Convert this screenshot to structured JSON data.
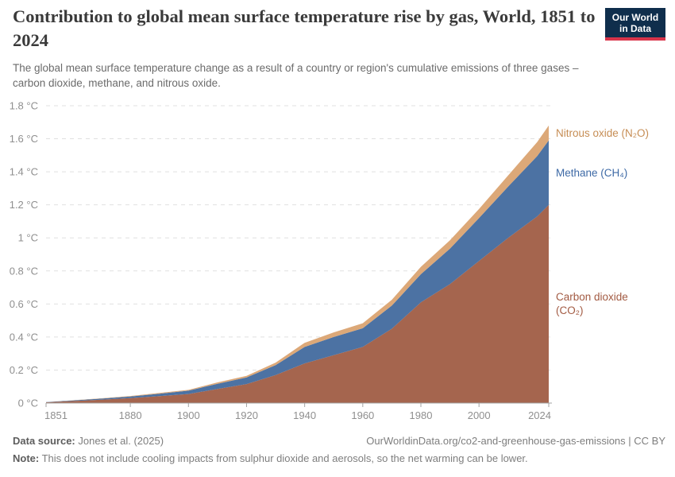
{
  "header": {
    "title": "Contribution to global mean surface temperature rise by gas, World, 1851 to 2024",
    "subtitle": "The global mean surface temperature change as a result of a country or region's cumulative emissions of three gases – carbon dioxide, methane, and nitrous oxide.",
    "logo": {
      "line1": "Our World",
      "line2": "in Data"
    }
  },
  "chart_data": {
    "type": "area",
    "stacked": true,
    "title": "Contribution to global mean surface temperature rise by gas, World, 1851 to 2024",
    "xlabel": "",
    "ylabel": "",
    "ylim": [
      0,
      1.8
    ],
    "ytick_step": 0.2,
    "ytick_suffix": " °C",
    "grid": "dashed-horizontal",
    "legend_position": "right-inline",
    "x": [
      1851,
      1860,
      1870,
      1880,
      1890,
      1900,
      1910,
      1920,
      1930,
      1940,
      1950,
      1960,
      1970,
      1980,
      1990,
      2000,
      2010,
      2020,
      2024
    ],
    "xticks": [
      1851,
      1880,
      1900,
      1920,
      1940,
      1960,
      1980,
      2000,
      2024
    ],
    "series": [
      {
        "name": "Carbon dioxide (CO₂)",
        "label_lines": [
          "Carbon dioxide",
          "(CO₂)"
        ],
        "area_color": "#a5654e",
        "label_color": "#a25a42",
        "values": [
          0.005,
          0.012,
          0.02,
          0.03,
          0.042,
          0.055,
          0.085,
          0.115,
          0.17,
          0.24,
          0.29,
          0.34,
          0.45,
          0.61,
          0.72,
          0.86,
          1.0,
          1.13,
          1.2
        ]
      },
      {
        "name": "Methane (CH₄)",
        "label_lines": [
          "Methane (CH₄)"
        ],
        "area_color": "#4c72a3",
        "label_color": "#3e6aa6",
        "values": [
          0.001,
          0.004,
          0.007,
          0.01,
          0.015,
          0.02,
          0.032,
          0.04,
          0.06,
          0.1,
          0.11,
          0.113,
          0.14,
          0.17,
          0.215,
          0.26,
          0.31,
          0.365,
          0.39
        ]
      },
      {
        "name": "Nitrous oxide (N₂O)",
        "label_lines": [
          "Nitrous oxide (N₂O)"
        ],
        "area_color": "#dca878",
        "label_color": "#c68d54",
        "values": [
          0.0,
          0.001,
          0.002,
          0.003,
          0.004,
          0.005,
          0.008,
          0.01,
          0.015,
          0.025,
          0.028,
          0.03,
          0.035,
          0.045,
          0.05,
          0.055,
          0.068,
          0.085,
          0.09
        ]
      }
    ],
    "axis_colors": {
      "grid": "#e0e0e0",
      "axis_line": "#a3a3a3",
      "tick_text": "#8f8f8f"
    }
  },
  "footer": {
    "source_label": "Data source:",
    "source_value": " Jones et al. (2025)",
    "attribution": "OurWorldinData.org/co2-and-greenhouse-gas-emissions | CC BY",
    "note_label": "Note:",
    "note_value": " This does not include cooling impacts from sulphur dioxide and aerosols, so the net warming can be lower."
  }
}
